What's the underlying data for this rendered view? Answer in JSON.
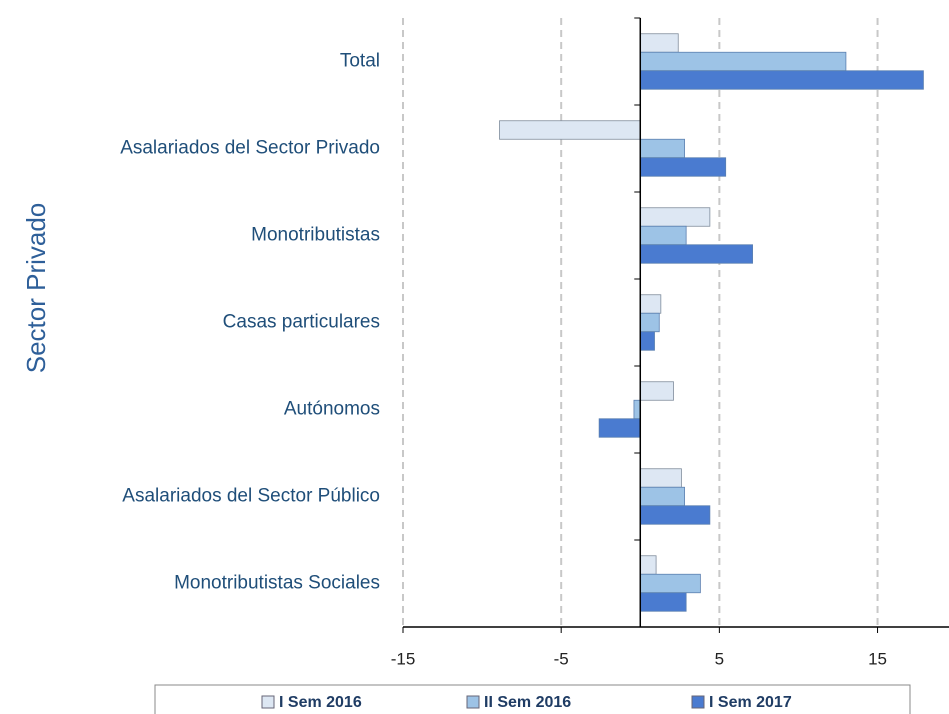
{
  "chart_data": {
    "type": "barh",
    "y_label": "Sector Privado",
    "categories": [
      "Total",
      "Asalariados del Sector Privado",
      "Monotributistas",
      "Casas particulares",
      "Autónomos",
      "Asalariados del Sector Público",
      "Monotributistas Sociales"
    ],
    "series": [
      {
        "name": "I Sem 2016",
        "color": "#dde7f3",
        "values": [
          2.4,
          -8.9,
          4.4,
          1.3,
          2.1,
          2.6,
          1.0
        ]
      },
      {
        "name": "II Sem 2016",
        "color": "#9dc3e6",
        "values": [
          13.0,
          2.8,
          2.9,
          1.2,
          -0.4,
          2.8,
          3.8
        ]
      },
      {
        "name": "I Sem 2017",
        "color": "#4a7bd0",
        "values": [
          17.9,
          5.4,
          7.1,
          0.9,
          -2.6,
          4.4,
          2.9
        ]
      }
    ],
    "xlim": [
      -15,
      18
    ],
    "xticks": [
      -15,
      -5,
      5,
      15
    ],
    "grid": true,
    "legend": "bottom"
  }
}
